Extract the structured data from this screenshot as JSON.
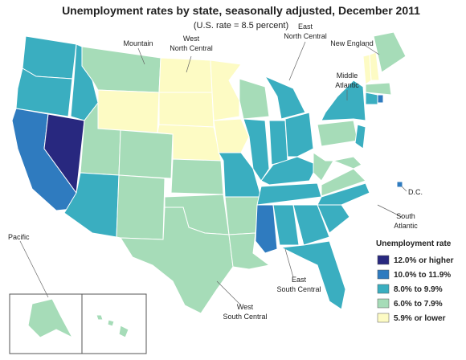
{
  "title": "Unemployment rates by state, seasonally adjusted, December 2011",
  "subtitle": "(U.S. rate = 8.5 percent)",
  "region_labels": [
    {
      "lines": [
        "Mountain"
      ]
    },
    {
      "lines": [
        "West",
        "North Central"
      ]
    },
    {
      "lines": [
        "East",
        "North Central"
      ]
    },
    {
      "lines": [
        "New England"
      ]
    },
    {
      "lines": [
        "Middle",
        "Atlantic"
      ]
    },
    {
      "lines": [
        "D.C."
      ]
    },
    {
      "lines": [
        "South",
        "Atlantic"
      ]
    },
    {
      "lines": [
        "East",
        "South Central"
      ]
    },
    {
      "lines": [
        "West",
        "South Central"
      ]
    },
    {
      "lines": [
        "Pacific"
      ]
    }
  ],
  "legend": {
    "title": "Unemployment rate",
    "items": [
      {
        "label": "12.0% or higher",
        "color": "#28287f"
      },
      {
        "label": "10.0% to 11.9%",
        "color": "#2f7bbf"
      },
      {
        "label": "8.0% to 9.9%",
        "color": "#3aaec0"
      },
      {
        "label": "6.0% to 7.9%",
        "color": "#a6dcb8"
      },
      {
        "label": "5.9% or lower",
        "color": "#fdfbc4"
      }
    ]
  }
}
